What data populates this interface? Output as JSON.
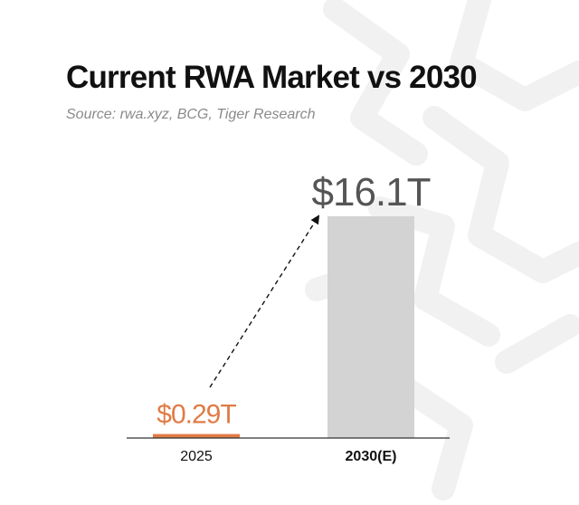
{
  "header": {
    "title": "Current RWA Market vs 2030",
    "source": "Source: rwa.xyz, BCG, Tiger Research"
  },
  "colors": {
    "accent": "#e07b45",
    "projected_bar": "#d3d3d3",
    "axis": "#333333",
    "watermark": "#f1f1f1"
  },
  "chart_data": {
    "type": "bar",
    "title": "Current RWA Market vs 2030",
    "subtitle": "Source: rwa.xyz, BCG, Tiger Research",
    "xlabel": "",
    "ylabel": "",
    "categories": [
      "2025",
      "2030(E)"
    ],
    "values": [
      0.29,
      16.1
    ],
    "unit": "T",
    "data_labels": [
      "$0.29T",
      "$16.1T"
    ],
    "ylim": [
      0,
      16.1
    ],
    "grid": false,
    "legend": "none",
    "annotations": [
      "dashed arrow from 2025 bar to 2030(E) bar"
    ]
  }
}
